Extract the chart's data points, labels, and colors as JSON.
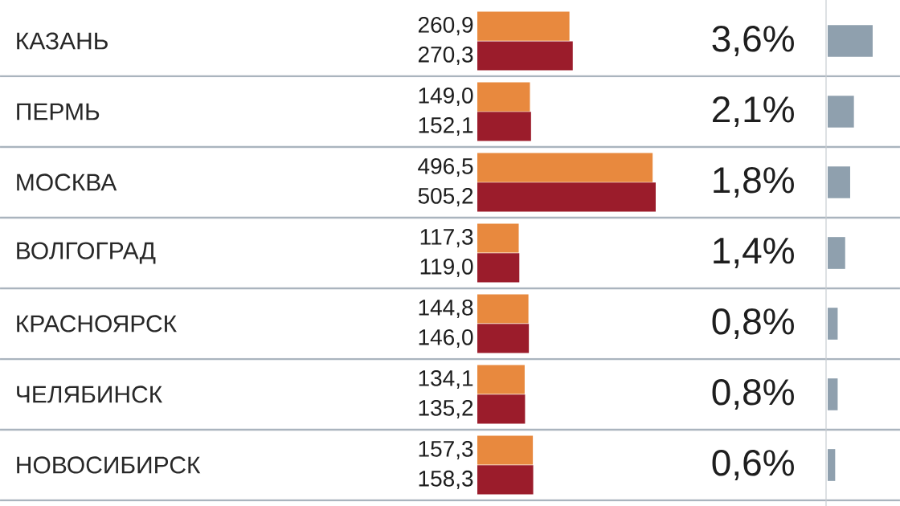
{
  "chart_data": [
    {
      "type": "bar",
      "orientation": "horizontal",
      "tick_labels": "y",
      "categories": [
        "КАЗАНЬ",
        "ПЕРМЬ",
        "МОСКВА",
        "ВОЛГОГРАД",
        "КРАСНОЯРСК",
        "ЧЕЛЯБИНСК",
        "НОВОСИБИРСК"
      ],
      "series": [
        {
          "color": "#e8893e",
          "values": [
            260.9,
            149.0,
            496.5,
            117.3,
            144.8,
            134.1,
            157.3
          ],
          "value_labels": [
            "260,9",
            "149,0",
            "496,5",
            "117,3",
            "144,8",
            "134,1",
            "157,3"
          ]
        },
        {
          "color": "#9b1c2b",
          "values": [
            270.3,
            152.1,
            505.2,
            119.0,
            146.0,
            135.2,
            158.3
          ],
          "value_labels": [
            "270,3",
            "152,1",
            "505,2",
            "119,0",
            "146,0",
            "135,2",
            "158,3"
          ]
        }
      ]
    },
    {
      "type": "bar",
      "orientation": "horizontal",
      "tick_labels": false,
      "categories": [
        null,
        null,
        null,
        null,
        null,
        null,
        null
      ],
      "color": "#8fa0ae",
      "values": [
        3.6,
        2.1,
        1.8,
        1.4,
        0.8,
        0.8,
        0.6
      ],
      "value_labels": [
        "3,6%",
        "2,1%",
        "1,8%",
        "1,4%",
        "0,8%",
        "0,8%",
        "0,6%"
      ]
    }
  ]
}
